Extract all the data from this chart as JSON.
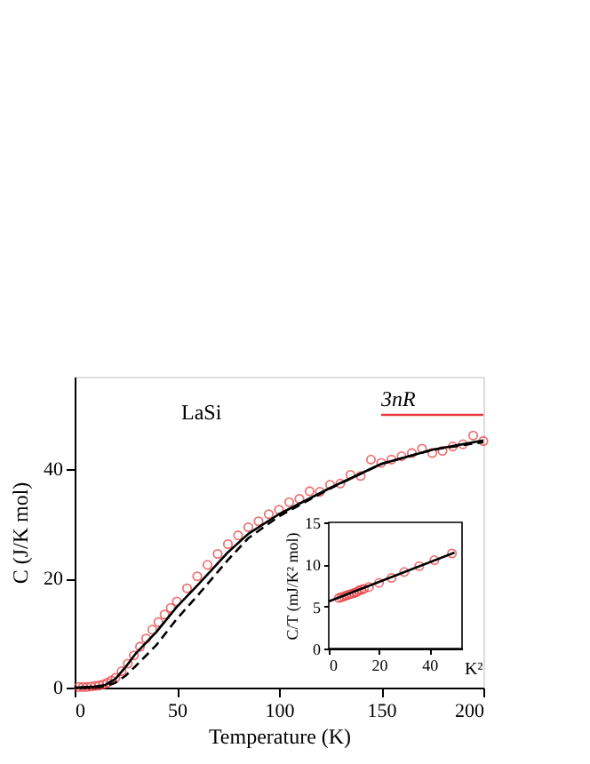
{
  "chart_data": [
    {
      "type": "line",
      "xlabel": "Temperature (K)",
      "ylabel": "C (J/K mol)",
      "xlim": [
        0,
        200
      ],
      "ylim": [
        0,
        57
      ],
      "xticks": [
        0,
        50,
        100,
        150,
        200
      ],
      "yticks": [
        0,
        20,
        40
      ],
      "grid": false,
      "annotations": [
        "LaSi"
      ],
      "series": [
        {
          "type": "scatter",
          "marker": "circle",
          "color": "#e8383d",
          "x": [
            2,
            4,
            6,
            8,
            10,
            12,
            14,
            16,
            18,
            20,
            23,
            26,
            29,
            32,
            35,
            38,
            41,
            44,
            47,
            50,
            55,
            60,
            65,
            70,
            75,
            80,
            85,
            90,
            95,
            100,
            105,
            110,
            115,
            120,
            125,
            130,
            135,
            140,
            145,
            150,
            155,
            160,
            165,
            170,
            175,
            180,
            185,
            190,
            195,
            200
          ],
          "values": [
            0.1,
            0.1,
            0.1,
            0.2,
            0.3,
            0.4,
            0.6,
            0.9,
            1.3,
            1.8,
            3.0,
            4.4,
            5.9,
            7.5,
            9.0,
            10.6,
            12.0,
            13.4,
            14.6,
            15.8,
            18.2,
            20.4,
            22.5,
            24.5,
            26.3,
            27.9,
            29.4,
            30.5,
            31.8,
            32.6,
            34.0,
            34.6,
            36.0,
            35.9,
            37.2,
            37.4,
            39.0,
            38.8,
            41.8,
            41.2,
            41.8,
            42.4,
            43.0,
            43.8,
            43.0,
            43.4,
            44.2,
            44.6,
            46.2,
            45.2
          ]
        },
        {
          "line_style": "solid",
          "color": "#000000",
          "x": [
            0,
            10,
            15,
            20,
            25,
            30,
            40,
            50,
            60,
            75,
            85,
            100,
            125,
            150,
            175,
            200
          ],
          "values": [
            0,
            0.2,
            0.5,
            1.6,
            3.8,
            6.3,
            10.2,
            14.8,
            18.7,
            24.8,
            28.2,
            31.8,
            36.6,
            41.0,
            43.6,
            45.3
          ]
        },
        {
          "line_style": "dashed",
          "color": "#000000",
          "x": [
            3,
            10,
            15,
            20,
            25,
            30,
            40,
            50,
            60,
            75,
            85,
            100,
            125,
            150,
            175,
            200
          ],
          "values": [
            0,
            0.1,
            0.3,
            0.9,
            2.2,
            4.0,
            7.8,
            12.6,
            16.8,
            23.4,
            27.4,
            31.4,
            36.5,
            41.0,
            43.6,
            45.0
          ]
        },
        {
          "name": "3nR",
          "line_style": "solid",
          "color": "#e8383d",
          "x": [
            150,
            200
          ],
          "values": [
            50,
            50
          ]
        }
      ]
    },
    {
      "type": "line",
      "xlabel": "K²",
      "ylabel": "C/T (mJ/K² mol)",
      "xlim": [
        0,
        53
      ],
      "ylim": [
        0,
        15
      ],
      "xticks": [
        0,
        20,
        40
      ],
      "yticks": [
        0,
        5,
        10,
        15
      ],
      "grid": false,
      "series": [
        {
          "type": "scatter",
          "marker": "circle",
          "color": "#e8383d",
          "x": [
            4,
            5,
            6,
            7,
            8,
            9,
            10,
            11,
            12,
            13,
            14,
            16,
            20,
            25,
            30,
            36,
            42,
            49
          ],
          "values": [
            6.0,
            6.1,
            6.2,
            6.3,
            6.4,
            6.5,
            6.6,
            6.7,
            6.9,
            7.0,
            7.1,
            7.3,
            7.8,
            8.4,
            9.1,
            9.8,
            10.5,
            11.3
          ]
        },
        {
          "line_style": "solid",
          "color": "#000000",
          "x": [
            0,
            50
          ],
          "values": [
            5.6,
            11.4
          ]
        }
      ]
    }
  ]
}
